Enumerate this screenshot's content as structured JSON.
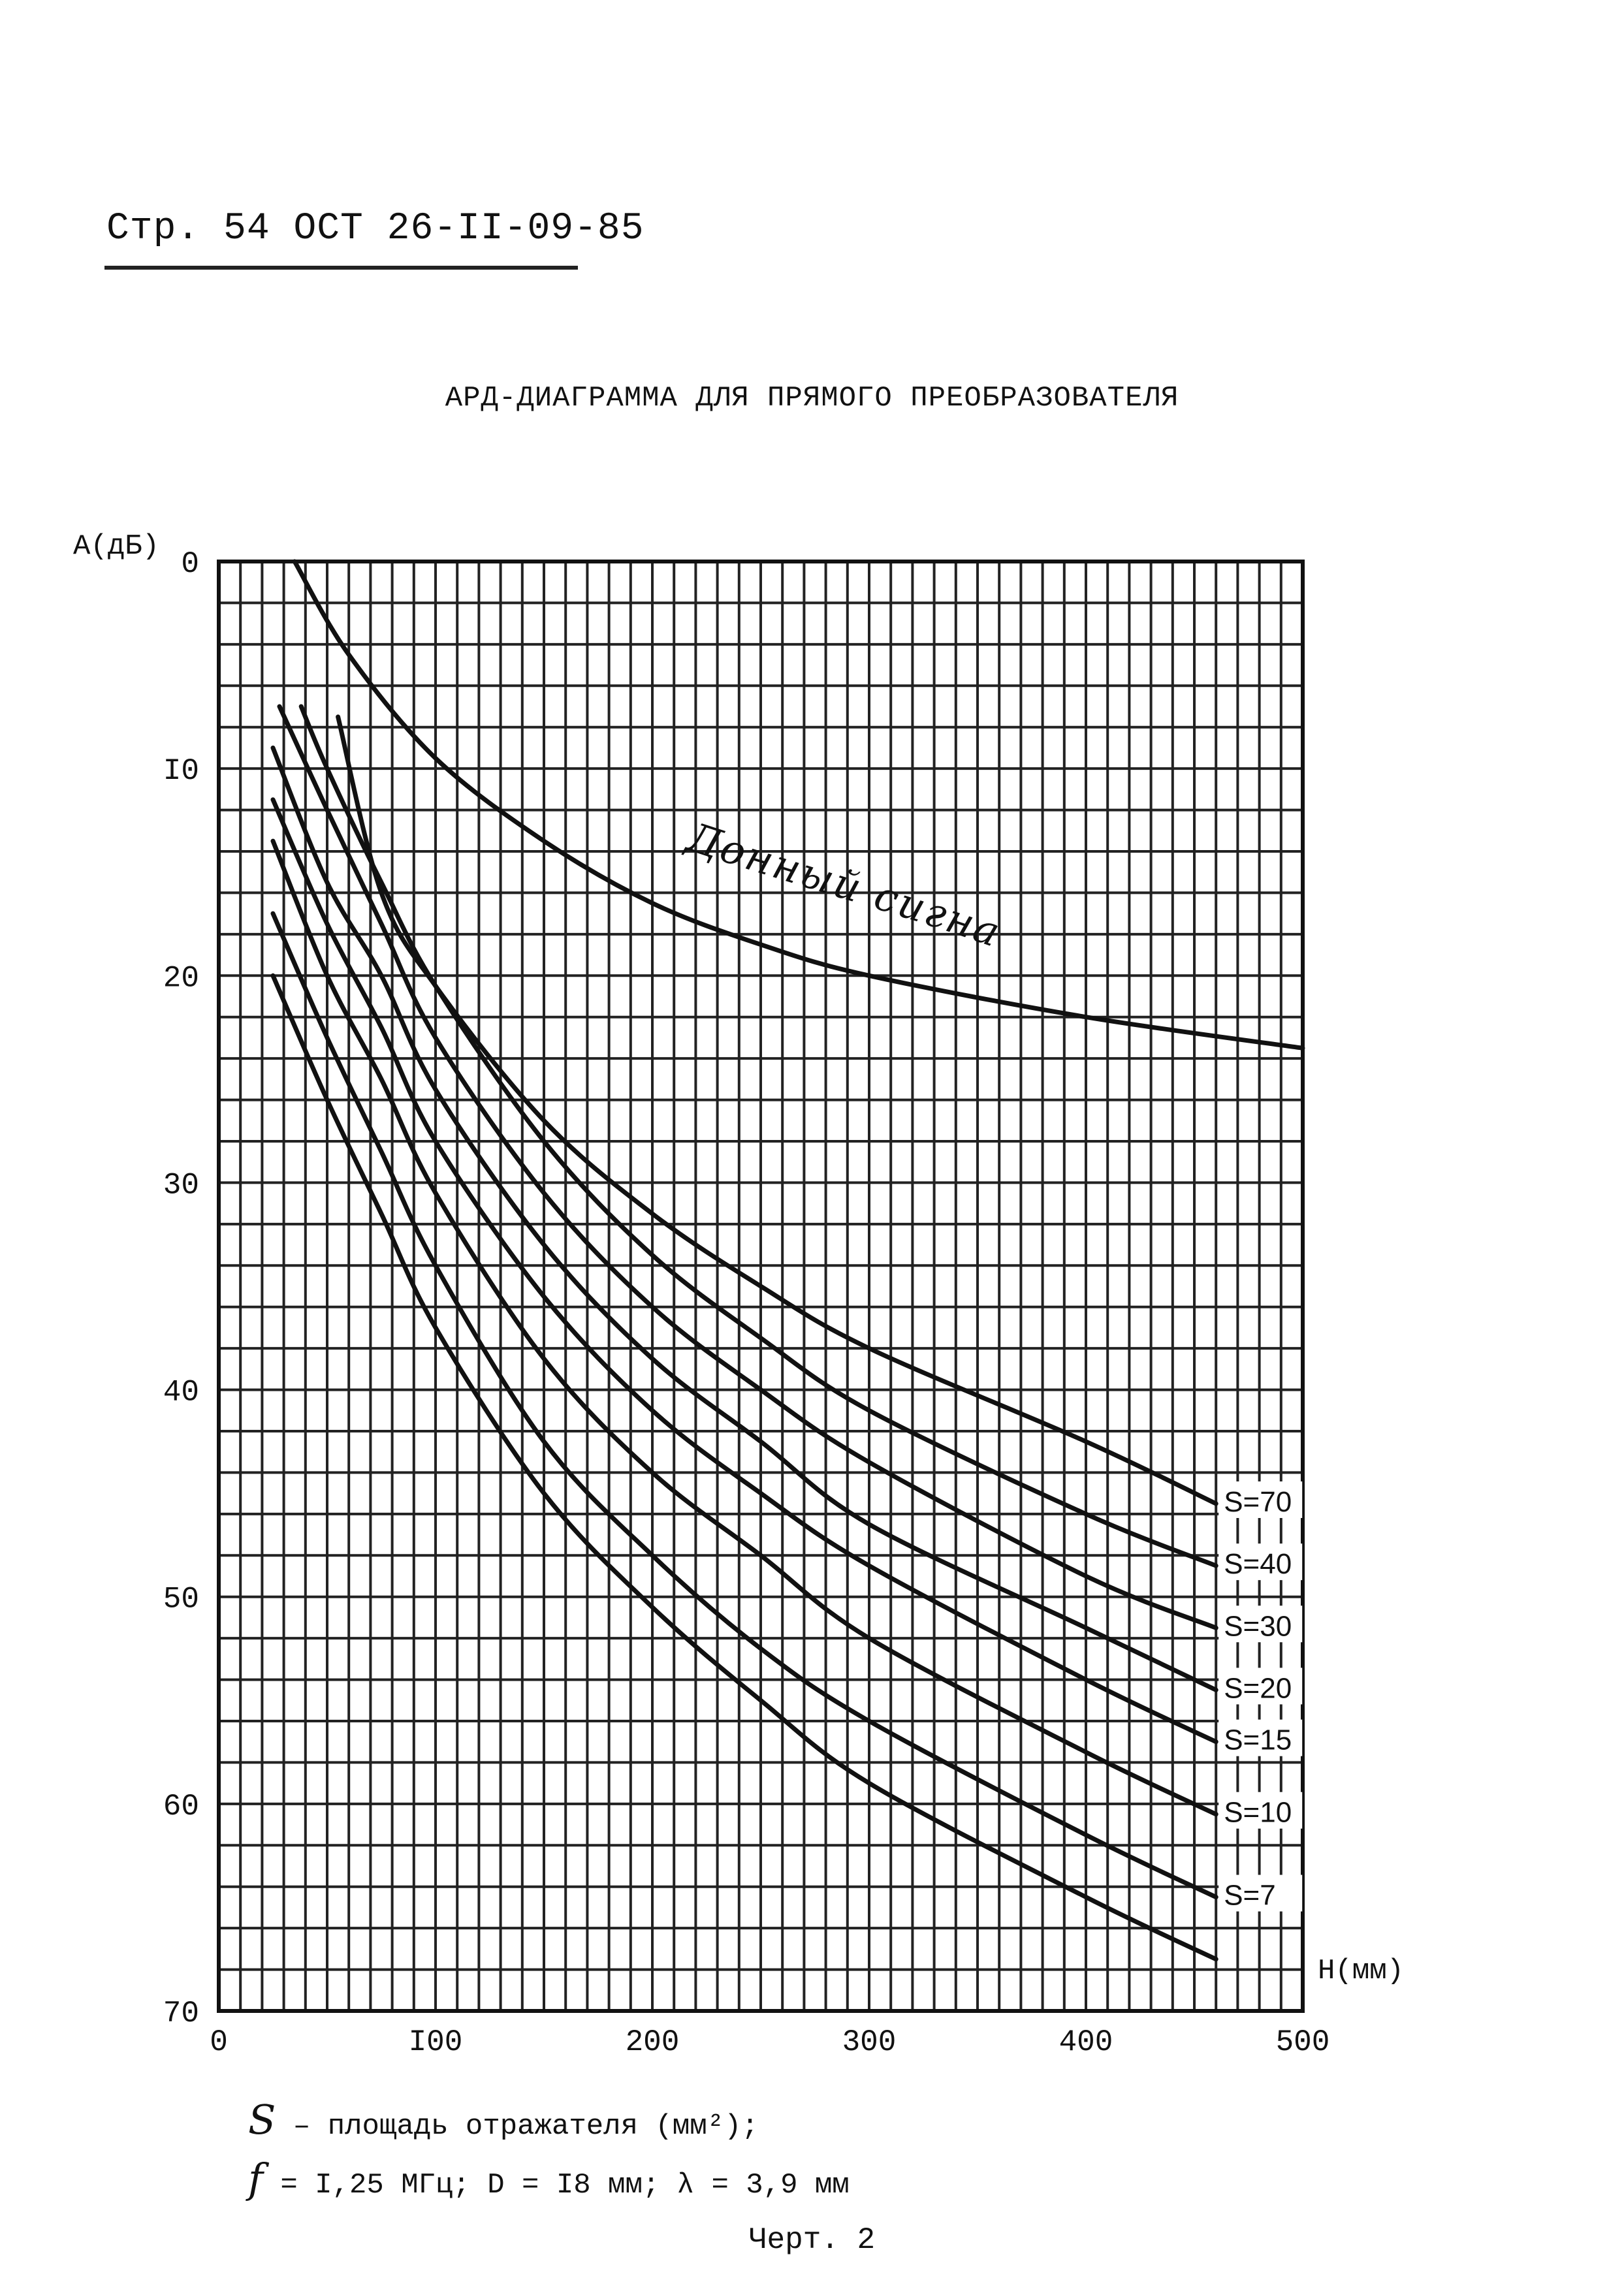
{
  "header": {
    "page_ref": "Стр. 54 ОСТ 26-II-09-85"
  },
  "chart_data": {
    "type": "line",
    "title": "АРД-ДИАГРАММА ДЛЯ ПРЯМОГО ПРЕОБРАЗОВАТЕЛЯ",
    "xlabel": "Н(мм)",
    "ylabel": "А(дБ)",
    "xlim": [
      0,
      500
    ],
    "ylim": [
      0,
      70
    ],
    "y_inverted": true,
    "grid": true,
    "x_tick_labels": [
      "0",
      "I00",
      "200",
      "300",
      "400",
      "500"
    ],
    "y_tick_labels": [
      "0",
      "I0",
      "20",
      "30",
      "40",
      "50",
      "60",
      "70"
    ],
    "series": [
      {
        "name": "Донный сигнал",
        "x": [
          35,
          60,
          100,
          150,
          200,
          250,
          300,
          400,
          500
        ],
        "y": [
          0,
          4.5,
          9.5,
          13.5,
          16.5,
          18.5,
          20.0,
          22.0,
          23.5
        ]
      },
      {
        "name": "S=70",
        "x": [
          55,
          75,
          100,
          150,
          200,
          250,
          300,
          400,
          460
        ],
        "y": [
          7.5,
          16.0,
          20.5,
          27.0,
          31.5,
          35.0,
          38.0,
          42.5,
          45.5
        ]
      },
      {
        "name": "S=40",
        "x": [
          38,
          50,
          75,
          100,
          150,
          200,
          250,
          300,
          400,
          460
        ],
        "y": [
          7.0,
          10.0,
          15.5,
          20.5,
          28.0,
          33.5,
          37.5,
          41.0,
          46.0,
          48.5
        ]
      },
      {
        "name": "S=30",
        "x": [
          28,
          50,
          75,
          100,
          150,
          200,
          250,
          300,
          400,
          460
        ],
        "y": [
          7.0,
          12.0,
          17.5,
          23.0,
          30.5,
          36.0,
          40.0,
          43.5,
          49.0,
          51.5
        ]
      },
      {
        "name": "S=20",
        "x": [
          25,
          50,
          75,
          100,
          150,
          200,
          250,
          300,
          400,
          460
        ],
        "y": [
          9.0,
          15.5,
          20.0,
          25.5,
          33.0,
          38.5,
          42.5,
          46.5,
          51.5,
          54.5
        ]
      },
      {
        "name": "S=15",
        "x": [
          25,
          50,
          75,
          100,
          150,
          200,
          250,
          300,
          400,
          460
        ],
        "y": [
          11.5,
          17.5,
          22.5,
          28.0,
          35.5,
          41.0,
          45.0,
          48.5,
          54.0,
          57.0
        ]
      },
      {
        "name": "S=10",
        "x": [
          25,
          50,
          75,
          100,
          150,
          200,
          250,
          300,
          400,
          460
        ],
        "y": [
          13.5,
          20.0,
          25.0,
          30.5,
          38.5,
          44.0,
          48.0,
          52.0,
          57.5,
          60.5
        ]
      },
      {
        "name": "S=7",
        "x": [
          25,
          50,
          75,
          100,
          150,
          200,
          250,
          300,
          400,
          460
        ],
        "y": [
          17.0,
          23.0,
          28.5,
          34.0,
          42.5,
          48.0,
          52.5,
          56.0,
          61.5,
          64.5
        ]
      },
      {
        "name": "",
        "x": [
          25,
          50,
          75,
          100,
          150,
          200,
          250,
          300,
          400,
          460
        ],
        "y": [
          20.0,
          26.0,
          31.5,
          37.0,
          45.0,
          50.5,
          55.0,
          59.0,
          64.5,
          67.5
        ]
      }
    ],
    "curve_label": "Донный сигнал",
    "s_labels": [
      "S=70",
      "S=40",
      "S=30",
      "S=20",
      "S=15",
      "S=10",
      "S=7"
    ]
  },
  "notes": {
    "line1_symbol": "S",
    "line1_text": " – площадь отражателя (мм²);",
    "line2_symbol": "f",
    "line2_text": " = I,25 МГц; D = I8 мм;  λ = 3,9 мм"
  },
  "caption": "Черт. 2"
}
